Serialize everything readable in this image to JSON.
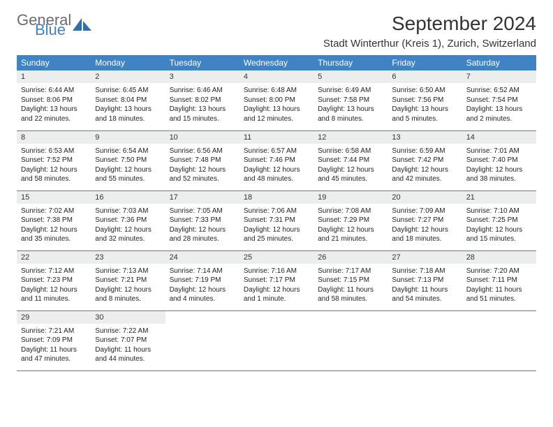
{
  "brand": {
    "word1": "General",
    "word2": "Blue",
    "text_gray": "#6d6d6d",
    "text_blue": "#3f83c4",
    "icon_fill": "#2e6fb0"
  },
  "header": {
    "month_title": "September 2024",
    "location": "Stadt Winterthur (Kreis 1), Zurich, Switzerland"
  },
  "style": {
    "header_bg": "#3f83c4",
    "header_fg": "#ffffff",
    "daynum_bg": "#eceded",
    "row_divider": "#3f83c4",
    "text_color": "#222222",
    "sunrise_font_pt": 10,
    "daynum_font_pt": 11,
    "weekday_font_pt": 12,
    "month_font_pt": 28,
    "location_font_pt": 15
  },
  "weekdays": [
    "Sunday",
    "Monday",
    "Tuesday",
    "Wednesday",
    "Thursday",
    "Friday",
    "Saturday"
  ],
  "weeks": [
    [
      {
        "day": "1",
        "sunrise": "Sunrise: 6:44 AM",
        "sunset": "Sunset: 8:06 PM",
        "daylight": "Daylight: 13 hours and 22 minutes."
      },
      {
        "day": "2",
        "sunrise": "Sunrise: 6:45 AM",
        "sunset": "Sunset: 8:04 PM",
        "daylight": "Daylight: 13 hours and 18 minutes."
      },
      {
        "day": "3",
        "sunrise": "Sunrise: 6:46 AM",
        "sunset": "Sunset: 8:02 PM",
        "daylight": "Daylight: 13 hours and 15 minutes."
      },
      {
        "day": "4",
        "sunrise": "Sunrise: 6:48 AM",
        "sunset": "Sunset: 8:00 PM",
        "daylight": "Daylight: 13 hours and 12 minutes."
      },
      {
        "day": "5",
        "sunrise": "Sunrise: 6:49 AM",
        "sunset": "Sunset: 7:58 PM",
        "daylight": "Daylight: 13 hours and 8 minutes."
      },
      {
        "day": "6",
        "sunrise": "Sunrise: 6:50 AM",
        "sunset": "Sunset: 7:56 PM",
        "daylight": "Daylight: 13 hours and 5 minutes."
      },
      {
        "day": "7",
        "sunrise": "Sunrise: 6:52 AM",
        "sunset": "Sunset: 7:54 PM",
        "daylight": "Daylight: 13 hours and 2 minutes."
      }
    ],
    [
      {
        "day": "8",
        "sunrise": "Sunrise: 6:53 AM",
        "sunset": "Sunset: 7:52 PM",
        "daylight": "Daylight: 12 hours and 58 minutes."
      },
      {
        "day": "9",
        "sunrise": "Sunrise: 6:54 AM",
        "sunset": "Sunset: 7:50 PM",
        "daylight": "Daylight: 12 hours and 55 minutes."
      },
      {
        "day": "10",
        "sunrise": "Sunrise: 6:56 AM",
        "sunset": "Sunset: 7:48 PM",
        "daylight": "Daylight: 12 hours and 52 minutes."
      },
      {
        "day": "11",
        "sunrise": "Sunrise: 6:57 AM",
        "sunset": "Sunset: 7:46 PM",
        "daylight": "Daylight: 12 hours and 48 minutes."
      },
      {
        "day": "12",
        "sunrise": "Sunrise: 6:58 AM",
        "sunset": "Sunset: 7:44 PM",
        "daylight": "Daylight: 12 hours and 45 minutes."
      },
      {
        "day": "13",
        "sunrise": "Sunrise: 6:59 AM",
        "sunset": "Sunset: 7:42 PM",
        "daylight": "Daylight: 12 hours and 42 minutes."
      },
      {
        "day": "14",
        "sunrise": "Sunrise: 7:01 AM",
        "sunset": "Sunset: 7:40 PM",
        "daylight": "Daylight: 12 hours and 38 minutes."
      }
    ],
    [
      {
        "day": "15",
        "sunrise": "Sunrise: 7:02 AM",
        "sunset": "Sunset: 7:38 PM",
        "daylight": "Daylight: 12 hours and 35 minutes."
      },
      {
        "day": "16",
        "sunrise": "Sunrise: 7:03 AM",
        "sunset": "Sunset: 7:36 PM",
        "daylight": "Daylight: 12 hours and 32 minutes."
      },
      {
        "day": "17",
        "sunrise": "Sunrise: 7:05 AM",
        "sunset": "Sunset: 7:33 PM",
        "daylight": "Daylight: 12 hours and 28 minutes."
      },
      {
        "day": "18",
        "sunrise": "Sunrise: 7:06 AM",
        "sunset": "Sunset: 7:31 PM",
        "daylight": "Daylight: 12 hours and 25 minutes."
      },
      {
        "day": "19",
        "sunrise": "Sunrise: 7:08 AM",
        "sunset": "Sunset: 7:29 PM",
        "daylight": "Daylight: 12 hours and 21 minutes."
      },
      {
        "day": "20",
        "sunrise": "Sunrise: 7:09 AM",
        "sunset": "Sunset: 7:27 PM",
        "daylight": "Daylight: 12 hours and 18 minutes."
      },
      {
        "day": "21",
        "sunrise": "Sunrise: 7:10 AM",
        "sunset": "Sunset: 7:25 PM",
        "daylight": "Daylight: 12 hours and 15 minutes."
      }
    ],
    [
      {
        "day": "22",
        "sunrise": "Sunrise: 7:12 AM",
        "sunset": "Sunset: 7:23 PM",
        "daylight": "Daylight: 12 hours and 11 minutes."
      },
      {
        "day": "23",
        "sunrise": "Sunrise: 7:13 AM",
        "sunset": "Sunset: 7:21 PM",
        "daylight": "Daylight: 12 hours and 8 minutes."
      },
      {
        "day": "24",
        "sunrise": "Sunrise: 7:14 AM",
        "sunset": "Sunset: 7:19 PM",
        "daylight": "Daylight: 12 hours and 4 minutes."
      },
      {
        "day": "25",
        "sunrise": "Sunrise: 7:16 AM",
        "sunset": "Sunset: 7:17 PM",
        "daylight": "Daylight: 12 hours and 1 minute."
      },
      {
        "day": "26",
        "sunrise": "Sunrise: 7:17 AM",
        "sunset": "Sunset: 7:15 PM",
        "daylight": "Daylight: 11 hours and 58 minutes."
      },
      {
        "day": "27",
        "sunrise": "Sunrise: 7:18 AM",
        "sunset": "Sunset: 7:13 PM",
        "daylight": "Daylight: 11 hours and 54 minutes."
      },
      {
        "day": "28",
        "sunrise": "Sunrise: 7:20 AM",
        "sunset": "Sunset: 7:11 PM",
        "daylight": "Daylight: 11 hours and 51 minutes."
      }
    ],
    [
      {
        "day": "29",
        "sunrise": "Sunrise: 7:21 AM",
        "sunset": "Sunset: 7:09 PM",
        "daylight": "Daylight: 11 hours and 47 minutes."
      },
      {
        "day": "30",
        "sunrise": "Sunrise: 7:22 AM",
        "sunset": "Sunset: 7:07 PM",
        "daylight": "Daylight: 11 hours and 44 minutes."
      },
      null,
      null,
      null,
      null,
      null
    ]
  ]
}
